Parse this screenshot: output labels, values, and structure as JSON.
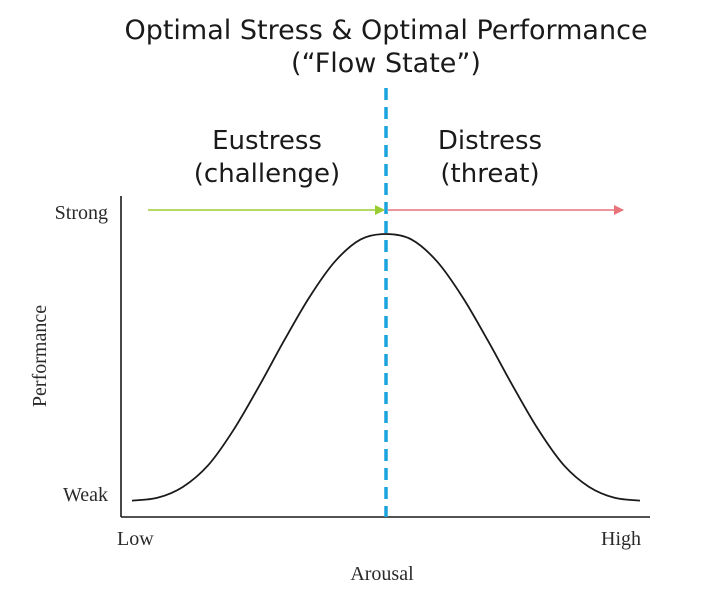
{
  "title": {
    "line1": "Optimal Stress & Optimal Performance",
    "line2": "(“Flow State”)"
  },
  "zones": {
    "eustress": {
      "label": "Eustress",
      "sublabel": "(challenge)",
      "arrow_color": "#9acd32"
    },
    "distress": {
      "label": "Distress",
      "sublabel": "(threat)",
      "arrow_color": "#e8737a"
    }
  },
  "axes": {
    "y_label": "Performance",
    "y_high": "Strong",
    "y_low": "Weak",
    "x_label": "Arousal",
    "x_low": "Low",
    "x_high": "High"
  },
  "colors": {
    "divider": "#1aa3dd",
    "curve": "#1a1a1a",
    "axis": "#1a1a1a"
  },
  "chart_data": {
    "type": "line",
    "shape": "inverted-U (bell) curve",
    "x": [
      0.0,
      0.05,
      0.1,
      0.15,
      0.2,
      0.25,
      0.3,
      0.35,
      0.4,
      0.45,
      0.5,
      0.55,
      0.6,
      0.65,
      0.7,
      0.75,
      0.8,
      0.85,
      0.9,
      0.95,
      1.0
    ],
    "y": [
      0.02,
      0.03,
      0.07,
      0.15,
      0.28,
      0.44,
      0.61,
      0.77,
      0.9,
      0.98,
      1.0,
      0.98,
      0.9,
      0.77,
      0.61,
      0.44,
      0.28,
      0.15,
      0.07,
      0.03,
      0.02
    ],
    "optimum_x": 0.5,
    "xlabel": "Arousal",
    "ylabel": "Performance",
    "xlim": [
      0,
      1
    ],
    "ylim": [
      0,
      1
    ]
  }
}
